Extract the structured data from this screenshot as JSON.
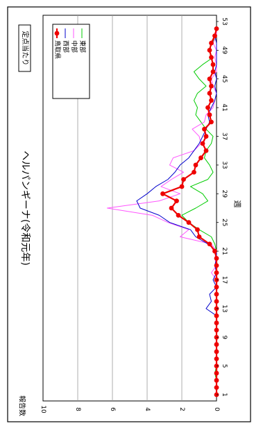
{
  "chart_data": {
    "type": "line",
    "title": "ヘルパンギーナ(令和元年)",
    "badge": "定点当たり",
    "xlabel": "週",
    "ylabel": "報告数",
    "xlim": [
      1,
      53
    ],
    "ylim": [
      0,
      10
    ],
    "xticks": [
      1,
      5,
      9,
      13,
      17,
      21,
      25,
      29,
      33,
      37,
      41,
      45,
      49,
      53
    ],
    "yticks": [
      0,
      2,
      4,
      6,
      8,
      10
    ],
    "grid": true,
    "legend_position": "top-right",
    "x": [
      1,
      2,
      3,
      4,
      5,
      6,
      7,
      8,
      9,
      10,
      11,
      12,
      13,
      14,
      15,
      16,
      17,
      18,
      19,
      20,
      21,
      22,
      23,
      24,
      25,
      26,
      27,
      28,
      29,
      30,
      31,
      32,
      33,
      34,
      35,
      36,
      37,
      38,
      39,
      40,
      41,
      42,
      43,
      44,
      45,
      46,
      47,
      48,
      49,
      50,
      51,
      52
    ],
    "series": [
      {
        "name": "東部",
        "color": "#00cc00",
        "marker": "none",
        "values": [
          0,
          0,
          0,
          0.1,
          0,
          0,
          0,
          0,
          0,
          0,
          0,
          0,
          0,
          0,
          0,
          0,
          0,
          0,
          0,
          0,
          0,
          0.1,
          0.3,
          1.0,
          1.6,
          2.0,
          1.2,
          0.5,
          0.8,
          1.5,
          0.5,
          0.2,
          0.4,
          0.7,
          0.6,
          0.3,
          0.2,
          0.6,
          0.9,
          1.2,
          1.1,
          1.3,
          1.1,
          0.6,
          1.0,
          1.3,
          0.8,
          0.2,
          0.5,
          0.2,
          0.1,
          0
        ]
      },
      {
        "name": "中部",
        "color": "#ff55ff",
        "marker": "none",
        "values": [
          0,
          0,
          0,
          0,
          0,
          0,
          0,
          0,
          0,
          0,
          0,
          0,
          0,
          0,
          0,
          0,
          0,
          0.3,
          0,
          0.1,
          0,
          0.3,
          2.1,
          1.6,
          2.8,
          3.7,
          6.3,
          3.3,
          2.1,
          3.2,
          2.6,
          1.9,
          2.7,
          2.5,
          1.3,
          0.9,
          1.0,
          1.4,
          0.7,
          0.6,
          0.2,
          0.1,
          0,
          0.2,
          0.3,
          0,
          0,
          0.1,
          0,
          0.2,
          0,
          0
        ]
      },
      {
        "name": "西部",
        "color": "#0000cc",
        "marker": "none",
        "values": [
          0,
          0,
          0,
          0,
          0,
          0,
          0,
          0,
          0,
          0,
          0,
          0,
          0.6,
          0.3,
          0.4,
          0,
          0.2,
          0,
          0.1,
          0,
          0,
          0.5,
          1.2,
          1.5,
          2.7,
          3.3,
          4.4,
          4.6,
          4.0,
          3.5,
          2.8,
          2.4,
          2.1,
          1.6,
          1.3,
          1.0,
          0.8,
          0.6,
          0.4,
          0.5,
          0.3,
          0.1,
          0,
          0.1,
          0,
          0.1,
          0,
          0,
          0,
          0,
          0.1,
          0
        ]
      },
      {
        "name": "鳥取県",
        "color": "#ee0000",
        "marker": "circle",
        "values": [
          0,
          0,
          0,
          0,
          0,
          0,
          0,
          0,
          0,
          0,
          0,
          0,
          0,
          0,
          0,
          0,
          0,
          0,
          0,
          0,
          0.1,
          0.4,
          1.0,
          1.1,
          1.6,
          2.2,
          2.6,
          2.3,
          3.1,
          2.0,
          1.9,
          1.3,
          1.2,
          0.9,
          0.6,
          0.8,
          0.6,
          0.7,
          0.3,
          0.4,
          0.5,
          0.3,
          0.4,
          0.3,
          0.4,
          0.2,
          0.2,
          0.3,
          0.4,
          0.3,
          0.1,
          0
        ]
      }
    ]
  }
}
